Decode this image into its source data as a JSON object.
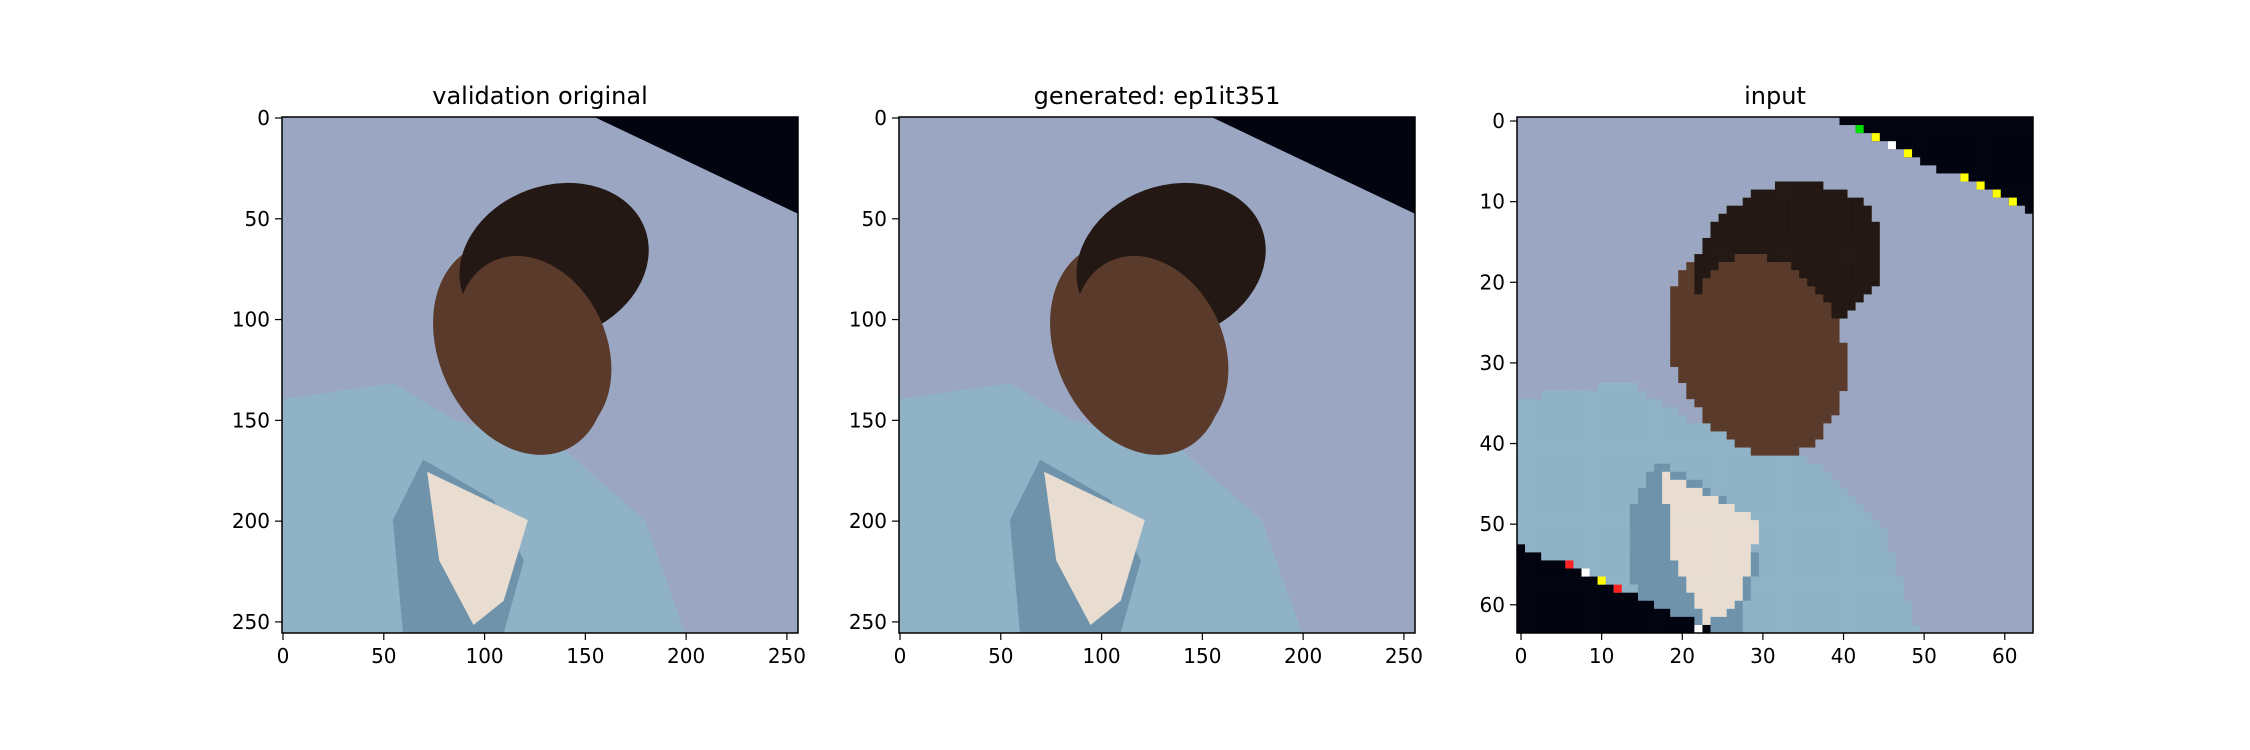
{
  "panels": [
    {
      "title": "validation original",
      "image_size": 256,
      "x_ticks": [
        0,
        50,
        100,
        150,
        200,
        250
      ],
      "y_ticks": [
        0,
        50,
        100,
        150,
        200,
        250
      ],
      "content": "rotated photo of a person in a light blue shirt against a blue-gray background, black corners"
    },
    {
      "title": "generated: ep1it351",
      "image_size": 256,
      "x_ticks": [
        0,
        50,
        100,
        150,
        200,
        250
      ],
      "y_ticks": [
        0,
        50,
        100,
        150,
        200,
        250
      ],
      "content": "reconstructed version of the same rotated photo"
    },
    {
      "title": "input",
      "image_size": 64,
      "x_ticks": [
        0,
        10,
        20,
        30,
        40,
        50,
        60
      ],
      "y_ticks": [
        0,
        10,
        20,
        30,
        40,
        50,
        60
      ],
      "content": "pixelated low-resolution version with a few colored boundary pixels"
    }
  ],
  "colors": {
    "background": "#9aa6c2",
    "background_dark": "#8896b4",
    "shirt": "#8fb2c7",
    "shirt_shadow": "#6f93ab",
    "undershirt": "#e8ddd0",
    "skin": "#5a3a2a",
    "hair": "#231813",
    "corner": "#020410"
  }
}
